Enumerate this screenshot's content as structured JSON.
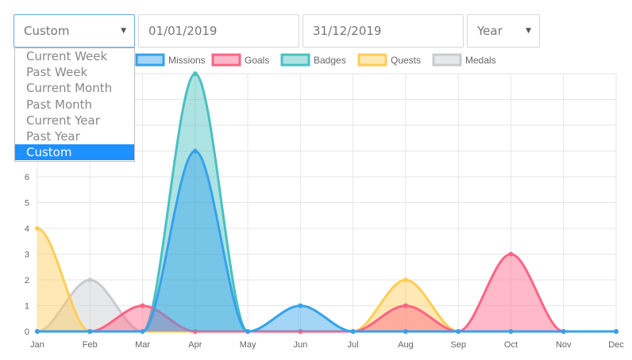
{
  "filters": {
    "period_selected": "Custom",
    "date_from": "01/01/2019",
    "date_to": "31/12/2019",
    "granularity": "Year",
    "period_options": [
      "Current Week",
      "Past Week",
      "Current Month",
      "Past Month",
      "Current Year",
      "Past Year",
      "Custom"
    ]
  },
  "chart_data": {
    "type": "area",
    "categories": [
      "Jan",
      "Feb",
      "Mar",
      "Apr",
      "May",
      "Jun",
      "Jul",
      "Aug",
      "Sep",
      "Oct",
      "Nov",
      "Dec"
    ],
    "ylim": [
      0,
      10
    ],
    "y_ticks": [
      "0",
      "1",
      "2",
      "3",
      "4",
      "5",
      "6"
    ],
    "grid": true,
    "legend_position": "top",
    "series": [
      {
        "name": "Missions",
        "color": "#36a2eb",
        "values": [
          0,
          0,
          0,
          7,
          0,
          1,
          0,
          0,
          0,
          0,
          0,
          0
        ]
      },
      {
        "name": "Goals",
        "color": "#ff6384",
        "values": [
          0,
          0,
          1,
          0,
          0,
          0,
          0,
          1,
          0,
          3,
          0,
          0
        ]
      },
      {
        "name": "Badges",
        "color": "#4bc0c0",
        "values": [
          0,
          0,
          0,
          10,
          0,
          0,
          0,
          0,
          0,
          0,
          0,
          0
        ]
      },
      {
        "name": "Quests",
        "color": "#ffcd56",
        "values": [
          4,
          0,
          0,
          0,
          0,
          0,
          0,
          2,
          0,
          0,
          0,
          0
        ]
      },
      {
        "name": "Medals",
        "color": "#c9cbcf",
        "values": [
          0,
          2,
          0,
          0,
          0,
          0,
          0,
          0,
          0,
          0,
          0,
          0
        ]
      }
    ]
  }
}
